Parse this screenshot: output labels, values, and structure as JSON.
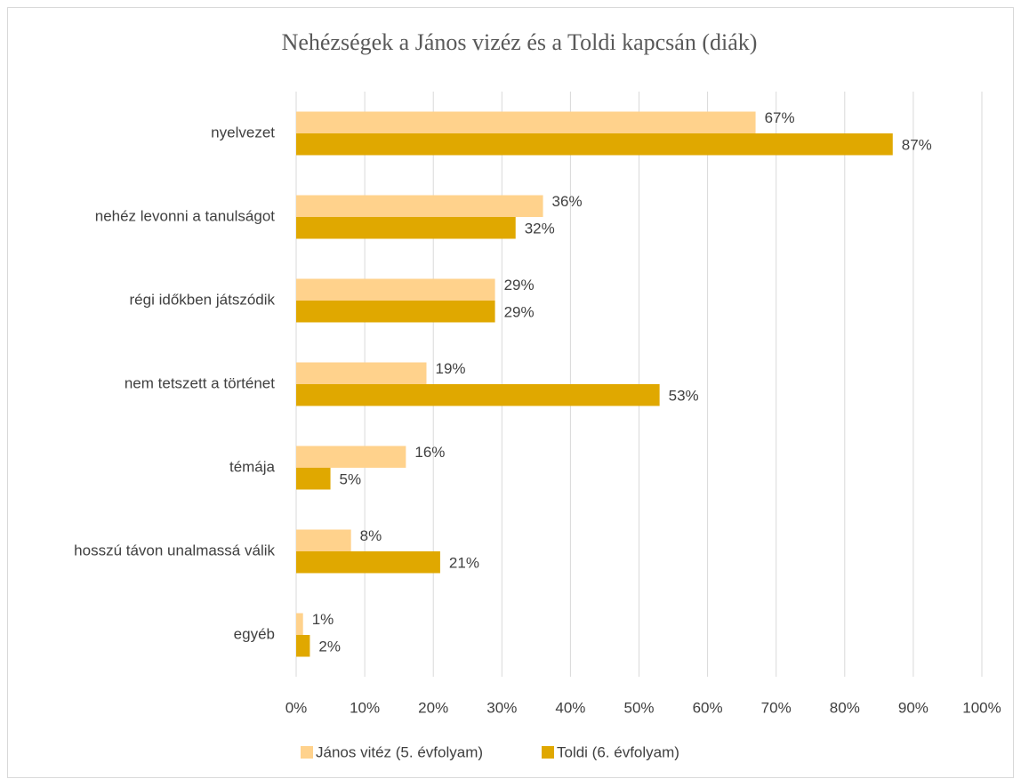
{
  "chart_data": {
    "type": "hbar",
    "title": "Nehézségek a János vizéz és a Toldi kapcsán (diák)",
    "categories": [
      "nyelvezet",
      "nehéz levonni a tanulságot",
      "régi időkben játszódik",
      "nem tetszett a történet",
      "témája",
      "hosszú távon unalmassá válik",
      "egyéb"
    ],
    "series": [
      {
        "name": "János vitéz (5. évfolyam)",
        "color": "#ffd28c",
        "values": [
          67,
          36,
          29,
          19,
          16,
          8,
          1
        ],
        "value_labels": [
          "67%",
          "36%",
          "29%",
          "19%",
          "16%",
          "8%",
          "1%"
        ]
      },
      {
        "name": "Toldi (6. évfolyam)",
        "color": "#e0a800",
        "values": [
          87,
          32,
          29,
          53,
          5,
          21,
          2
        ],
        "value_labels": [
          "87%",
          "32%",
          "29%",
          "53%",
          "5%",
          "21%",
          "2%"
        ]
      }
    ],
    "xlim": [
      0,
      100
    ],
    "xticks": [
      {
        "value": 0,
        "label": "0%"
      },
      {
        "value": 10,
        "label": "10%"
      },
      {
        "value": 20,
        "label": "20%"
      },
      {
        "value": 30,
        "label": "30%"
      },
      {
        "value": 40,
        "label": "40%"
      },
      {
        "value": 50,
        "label": "50%"
      },
      {
        "value": 60,
        "label": "60%"
      },
      {
        "value": 70,
        "label": "70%"
      },
      {
        "value": 80,
        "label": "80%"
      },
      {
        "value": 90,
        "label": "90%"
      },
      {
        "value": 100,
        "label": "100%"
      }
    ],
    "grid": true,
    "legend": "bottom"
  }
}
